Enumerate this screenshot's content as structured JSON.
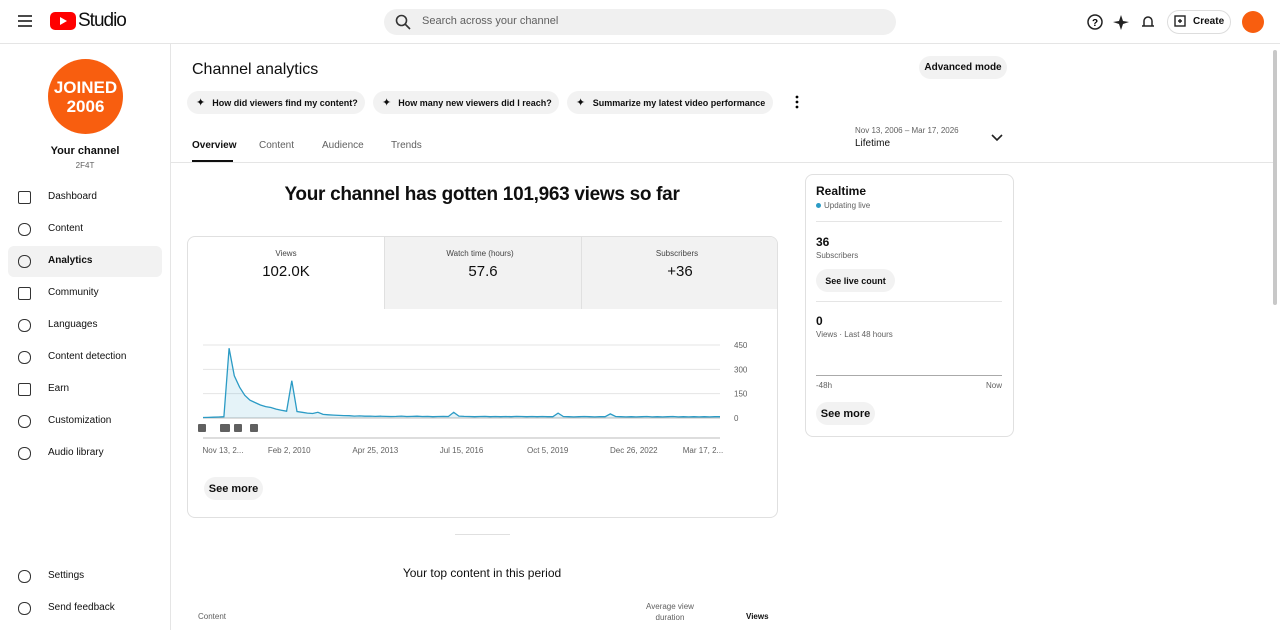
{
  "header": {
    "product": "Studio",
    "search_placeholder": "Search across your channel",
    "create": "Create"
  },
  "sidebar": {
    "avatar_lines": [
      "JOINED",
      "2006"
    ],
    "channel_title": "Your channel",
    "channel_handle": "2F4T",
    "nav": [
      "Dashboard",
      "Content",
      "Analytics",
      "Community",
      "Languages",
      "Content detection",
      "Earn",
      "Customization",
      "Audio library"
    ],
    "footer": [
      "Settings",
      "Send feedback"
    ]
  },
  "page": {
    "title": "Channel analytics",
    "advanced": "Advanced mode",
    "prompts": [
      "How did viewers find my content?",
      "How many new viewers did I reach?",
      "Summarize my latest video performance"
    ],
    "tabs": [
      "Overview",
      "Content",
      "Audience",
      "Trends"
    ],
    "date_range": "Nov 13, 2006 – Mar 17, 2026",
    "period": "Lifetime"
  },
  "overview": {
    "headline": "Your channel has gotten 101,963 views so far",
    "metrics": [
      {
        "label": "Views",
        "value": "102.0K"
      },
      {
        "label": "Watch time (hours)",
        "value": "57.6"
      },
      {
        "label": "Subscribers",
        "value": "+36"
      }
    ],
    "chart": {
      "color": "#2b9bc5",
      "ylim": [
        0,
        450
      ],
      "yticks": [
        0,
        150,
        300,
        450
      ],
      "xlabels": [
        "Nov 13, 2...",
        "Feb 2, 2010",
        "Apr 25, 2013",
        "Jul 15, 2016",
        "Oct 5, 2019",
        "Dec 26, 2022",
        "Mar 17, 2..."
      ],
      "values": [
        3,
        4,
        5,
        6,
        8,
        430,
        260,
        190,
        140,
        110,
        95,
        80,
        70,
        65,
        55,
        48,
        42,
        230,
        40,
        35,
        30,
        28,
        35,
        22,
        20,
        18,
        16,
        15,
        14,
        12,
        13,
        11,
        12,
        10,
        11,
        10,
        9,
        10,
        12,
        9,
        10,
        11,
        9,
        10,
        8,
        9,
        10,
        9,
        35,
        12,
        10,
        9,
        8,
        9,
        10,
        8,
        9,
        8,
        9,
        8,
        10,
        9,
        8,
        9,
        8,
        9,
        8,
        8,
        30,
        9,
        8,
        7,
        8,
        9,
        8,
        7,
        8,
        8,
        25,
        9,
        8,
        7,
        8,
        7,
        8,
        9,
        7,
        8,
        7,
        8,
        9,
        7,
        8,
        7,
        8,
        7,
        8,
        7,
        8,
        8
      ]
    },
    "see_more": "See more",
    "top_content_title": "Your top content in this period",
    "columns": [
      "Content",
      "Average view duration",
      "Views"
    ]
  },
  "realtime": {
    "title": "Realtime",
    "status": "Updating live",
    "subscribers": "36",
    "subscribers_label": "Subscribers",
    "live_count": "See live count",
    "views": "0",
    "views_label": "Views · Last 48 hours",
    "axis_start": "-48h",
    "axis_end": "Now",
    "see_more": "See more"
  }
}
